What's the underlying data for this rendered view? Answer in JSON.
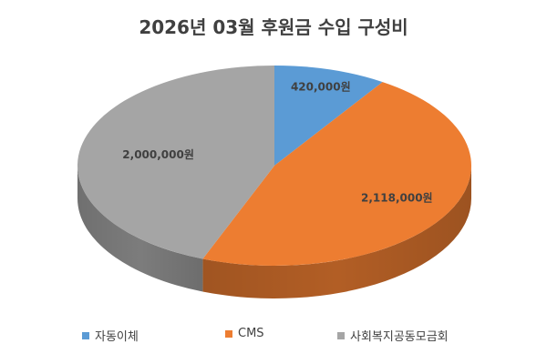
{
  "chart_data": {
    "type": "pie",
    "title": "2026년 03월 후원금 수입 구성비",
    "categories": [
      "자동이체",
      "CMS",
      "사회복지공동모금회"
    ],
    "values": [
      420000,
      2118000,
      2000000
    ],
    "data_labels": [
      "420,000원",
      "2,118,000원",
      "2,000,000원"
    ],
    "colors": [
      "#5B9BD5",
      "#ED7D31",
      "#A5A5A5"
    ],
    "legend_position": "bottom",
    "style": "3d"
  }
}
